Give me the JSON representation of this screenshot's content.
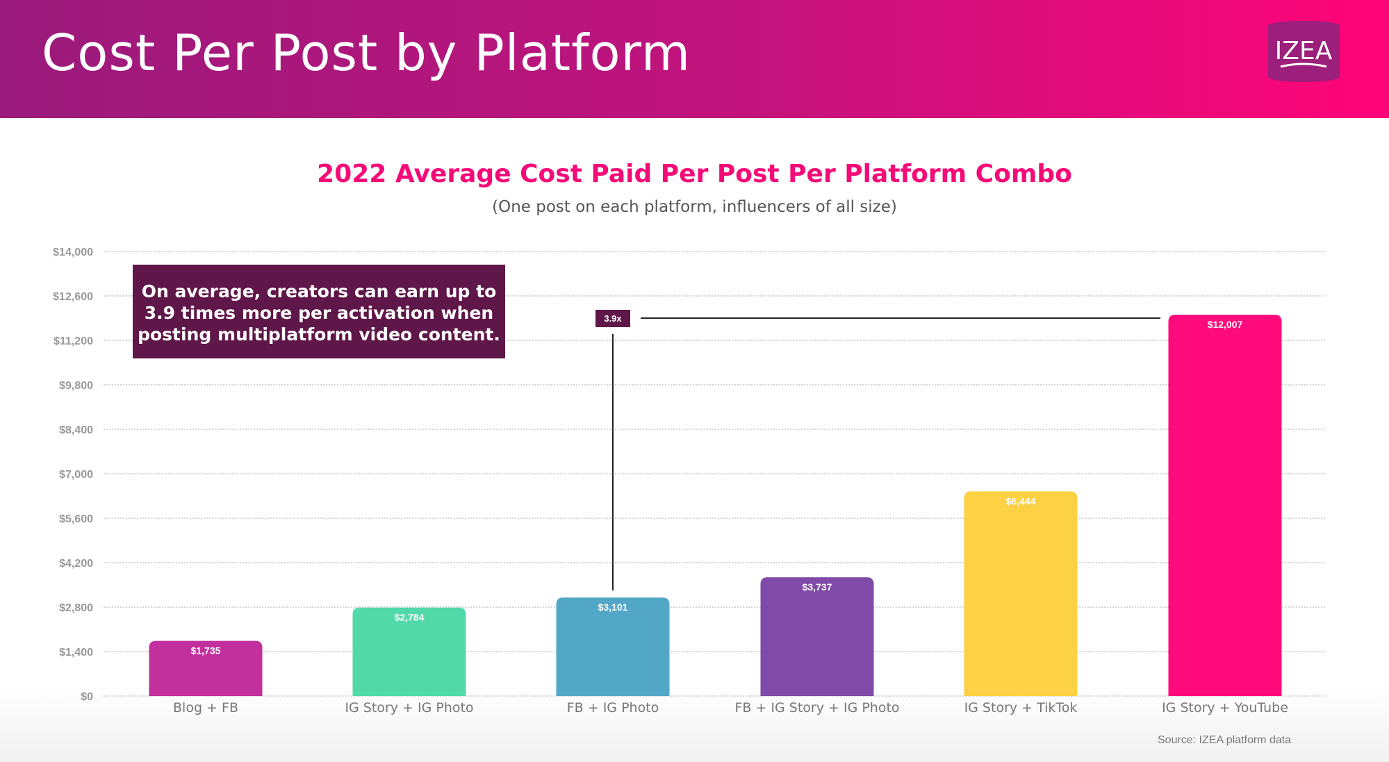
{
  "header": {
    "title": "Cost Per Post by Platform",
    "logo_text": "IZEA"
  },
  "callout": "On average, creators can earn up to 3.9 times more per activation when posting multiplatform video content.",
  "multiplier_label": "3.9x",
  "source": "Source: IZEA platform data",
  "chart_data": {
    "type": "bar",
    "title": "2022 Average Cost Paid Per Post Per Platform Combo",
    "subtitle": "(One post on each platform, influencers of all size)",
    "categories": [
      "Blog + FB",
      "IG Story + IG Photo",
      "FB + IG Photo",
      "FB + IG Story + IG Photo",
      "IG Story + TikTok",
      "IG Story + YouTube"
    ],
    "values": [
      1735,
      2784,
      3101,
      3737,
      6444,
      12007
    ],
    "data_labels": [
      "$1,735",
      "$2,784",
      "$3,101",
      "$3,737",
      "$6,444",
      "$12,007"
    ],
    "colors": [
      "#c2309e",
      "#52d9a9",
      "#53a7c6",
      "#7f4aa8",
      "#fcd143",
      "#ff0a7a"
    ],
    "ylim": [
      0,
      14000
    ],
    "yticks": [
      0,
      1400,
      2800,
      4200,
      5600,
      7000,
      8400,
      9800,
      11200,
      12600,
      14000
    ],
    "ytick_labels": [
      "$0",
      "$1,400",
      "$2,800",
      "$4,200",
      "$5,600",
      "$7,000",
      "$8,400",
      "$9,800",
      "$11,200",
      "$12,600",
      "$14,000"
    ],
    "grid": true,
    "xlabel": "",
    "ylabel": ""
  }
}
